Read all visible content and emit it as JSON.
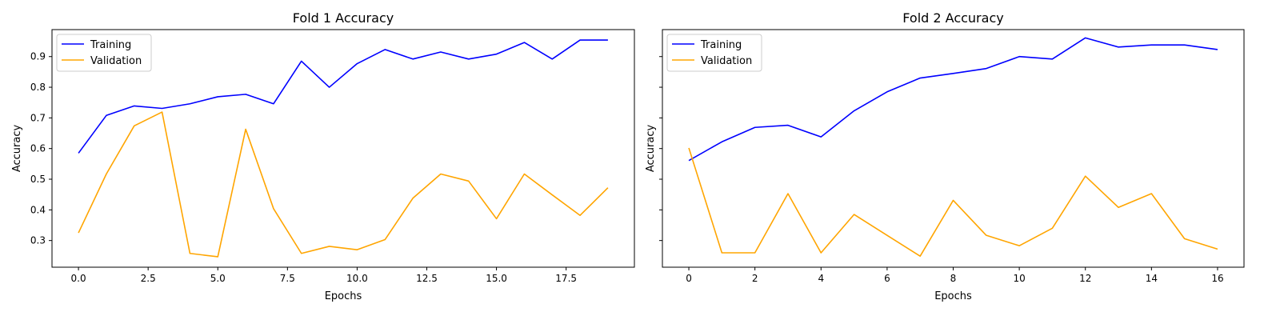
{
  "chart_data": [
    {
      "type": "line",
      "title": "Fold 1 Accuracy",
      "xlabel": "Epochs",
      "ylabel": "Accuracy",
      "xlim": [
        -0.95,
        19.95
      ],
      "ylim": [
        0.213,
        0.988
      ],
      "xticks": [
        0,
        2.5,
        5,
        7.5,
        10,
        12.5,
        15,
        17.5
      ],
      "xtick_labels": [
        "0.0",
        "2.5",
        "5.0",
        "7.5",
        "10.0",
        "12.5",
        "15.0",
        "17.5"
      ],
      "yticks": [
        0.3,
        0.4,
        0.5,
        0.6,
        0.7,
        0.8,
        0.9
      ],
      "ytick_labels": [
        "0.3",
        "0.4",
        "0.5",
        "0.6",
        "0.7",
        "0.8",
        "0.9"
      ],
      "show_yticklabels": true,
      "legend_position": "top-left",
      "grid": false,
      "x": [
        0,
        1,
        2,
        3,
        4,
        5,
        6,
        7,
        8,
        9,
        10,
        11,
        12,
        13,
        14,
        15,
        16,
        17,
        18,
        19
      ],
      "series": [
        {
          "name": "Training",
          "color": "#0000ff",
          "values": [
            0.585,
            0.708,
            0.739,
            0.731,
            0.746,
            0.769,
            0.777,
            0.746,
            0.885,
            0.8,
            0.877,
            0.923,
            0.892,
            0.915,
            0.892,
            0.908,
            0.946,
            0.892,
            0.954,
            0.954
          ]
        },
        {
          "name": "Validation",
          "color": "#ffa500",
          "values": [
            0.325,
            0.517,
            0.674,
            0.719,
            0.258,
            0.247,
            0.663,
            0.404,
            0.258,
            0.281,
            0.27,
            0.303,
            0.438,
            0.517,
            0.494,
            0.371,
            0.517,
            0.449,
            0.382,
            0.472
          ]
        }
      ]
    },
    {
      "type": "line",
      "title": "Fold 2 Accuracy",
      "xlabel": "Epochs",
      "ylabel": "Accuracy",
      "xlim": [
        -0.8,
        16.8
      ],
      "ylim": [
        0.213,
        0.988
      ],
      "xticks": [
        0,
        2,
        4,
        6,
        8,
        10,
        12,
        14,
        16
      ],
      "xtick_labels": [
        "0",
        "2",
        "4",
        "6",
        "8",
        "10",
        "12",
        "14",
        "16"
      ],
      "yticks": [
        0.3,
        0.4,
        0.5,
        0.6,
        0.7,
        0.8,
        0.9
      ],
      "ytick_labels": [],
      "show_yticklabels": false,
      "legend_position": "top-left",
      "grid": false,
      "x": [
        0,
        1,
        2,
        3,
        4,
        5,
        6,
        7,
        8,
        9,
        10,
        11,
        12,
        13,
        14,
        15,
        16
      ],
      "series": [
        {
          "name": "Training",
          "color": "#0000ff",
          "values": [
            0.561,
            0.622,
            0.669,
            0.676,
            0.638,
            0.723,
            0.785,
            0.83,
            0.845,
            0.861,
            0.9,
            0.892,
            0.961,
            0.931,
            0.938,
            0.938,
            0.923
          ]
        },
        {
          "name": "Validation",
          "color": "#ffa500",
          "values": [
            0.602,
            0.26,
            0.26,
            0.453,
            0.26,
            0.385,
            0.317,
            0.249,
            0.431,
            0.317,
            0.283,
            0.34,
            0.51,
            0.408,
            0.453,
            0.306,
            0.272
          ]
        }
      ]
    }
  ]
}
